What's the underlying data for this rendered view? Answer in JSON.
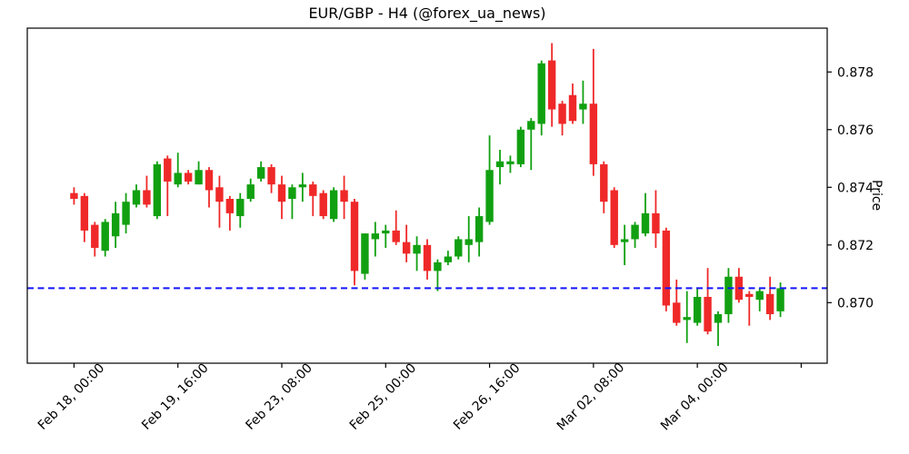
{
  "chart_data": {
    "type": "candlestick",
    "title": "EUR/GBP - H4 (@forex_ua_news)",
    "symbol": "EUR/GBP",
    "timeframe": "H4",
    "ylabel": "Price",
    "y_ticks": [
      "0.870",
      "0.872",
      "0.874",
      "0.876",
      "0.878"
    ],
    "x_ticks": [
      {
        "index": 0,
        "label": "Feb 18, 00:00"
      },
      {
        "index": 10,
        "label": "Feb 19, 16:00"
      },
      {
        "index": 20,
        "label": "Feb 23, 08:00"
      },
      {
        "index": 30,
        "label": "Feb 25, 00:00"
      },
      {
        "index": 40,
        "label": "Feb 26, 16:00"
      },
      {
        "index": 50,
        "label": "Mar 02, 08:00"
      },
      {
        "index": 60,
        "label": "Mar 04, 00:00"
      },
      {
        "index": 70,
        "label": ""
      }
    ],
    "xlim": [
      -4.5,
      72.5
    ],
    "ylim": [
      0.8679,
      0.87952
    ],
    "grid": false,
    "hline": {
      "price": 0.8705,
      "style": "dashed",
      "color": "#1515ff"
    },
    "colors": {
      "up": "#11a011",
      "down": "#ef2929",
      "hline": "#1515ff",
      "axis": "#000000",
      "text": "#000000",
      "background": "#ffffff"
    },
    "candles": [
      {
        "t": "Feb 18, 00:00",
        "o": 0.8738,
        "h": 0.874,
        "l": 0.8734,
        "c": 0.8736
      },
      {
        "t": "Feb 18, 04:00",
        "o": 0.8737,
        "h": 0.8738,
        "l": 0.8721,
        "c": 0.8725
      },
      {
        "t": "Feb 18, 08:00",
        "o": 0.8727,
        "h": 0.8728,
        "l": 0.8716,
        "c": 0.8719
      },
      {
        "t": "Feb 18, 12:00",
        "o": 0.8718,
        "h": 0.8729,
        "l": 0.8716,
        "c": 0.8728
      },
      {
        "t": "Feb 18, 16:00",
        "o": 0.8723,
        "h": 0.8735,
        "l": 0.8719,
        "c": 0.8731
      },
      {
        "t": "Feb 18, 20:00",
        "o": 0.8727,
        "h": 0.8738,
        "l": 0.8724,
        "c": 0.8735
      },
      {
        "t": "Feb 19, 00:00",
        "o": 0.8734,
        "h": 0.8741,
        "l": 0.8733,
        "c": 0.8739
      },
      {
        "t": "Feb 19, 04:00",
        "o": 0.8739,
        "h": 0.8744,
        "l": 0.8733,
        "c": 0.8734
      },
      {
        "t": "Feb 19, 08:00",
        "o": 0.873,
        "h": 0.8749,
        "l": 0.8729,
        "c": 0.8748
      },
      {
        "t": "Feb 19, 12:00",
        "o": 0.875,
        "h": 0.8751,
        "l": 0.873,
        "c": 0.8742
      },
      {
        "t": "Feb 19, 16:00",
        "o": 0.8741,
        "h": 0.8752,
        "l": 0.874,
        "c": 0.8745
      },
      {
        "t": "Feb 19, 20:00",
        "o": 0.8745,
        "h": 0.8746,
        "l": 0.8741,
        "c": 0.8742
      },
      {
        "t": "Feb 22, 00:00",
        "o": 0.8741,
        "h": 0.8749,
        "l": 0.8741,
        "c": 0.8746
      },
      {
        "t": "Feb 22, 04:00",
        "o": 0.8746,
        "h": 0.8747,
        "l": 0.8733,
        "c": 0.8739
      },
      {
        "t": "Feb 22, 08:00",
        "o": 0.874,
        "h": 0.8744,
        "l": 0.8726,
        "c": 0.8735
      },
      {
        "t": "Feb 22, 12:00",
        "o": 0.8736,
        "h": 0.8737,
        "l": 0.8725,
        "c": 0.8731
      },
      {
        "t": "Feb 22, 16:00",
        "o": 0.873,
        "h": 0.8738,
        "l": 0.8726,
        "c": 0.8736
      },
      {
        "t": "Feb 22, 20:00",
        "o": 0.8736,
        "h": 0.8743,
        "l": 0.8735,
        "c": 0.8741
      },
      {
        "t": "Feb 23, 00:00",
        "o": 0.8743,
        "h": 0.8749,
        "l": 0.8742,
        "c": 0.8747
      },
      {
        "t": "Feb 23, 04:00",
        "o": 0.8747,
        "h": 0.8748,
        "l": 0.8738,
        "c": 0.8741
      },
      {
        "t": "Feb 23, 08:00",
        "o": 0.8741,
        "h": 0.8744,
        "l": 0.8729,
        "c": 0.8735
      },
      {
        "t": "Feb 23, 12:00",
        "o": 0.8736,
        "h": 0.8741,
        "l": 0.8729,
        "c": 0.874
      },
      {
        "t": "Feb 23, 16:00",
        "o": 0.874,
        "h": 0.8745,
        "l": 0.8735,
        "c": 0.8741
      },
      {
        "t": "Feb 23, 20:00",
        "o": 0.8741,
        "h": 0.8742,
        "l": 0.873,
        "c": 0.8737
      },
      {
        "t": "Feb 24, 00:00",
        "o": 0.8738,
        "h": 0.8739,
        "l": 0.8729,
        "c": 0.873
      },
      {
        "t": "Feb 24, 04:00",
        "o": 0.8729,
        "h": 0.874,
        "l": 0.8728,
        "c": 0.8739
      },
      {
        "t": "Feb 24, 08:00",
        "o": 0.8739,
        "h": 0.8744,
        "l": 0.8729,
        "c": 0.8735
      },
      {
        "t": "Feb 24, 12:00",
        "o": 0.8735,
        "h": 0.8736,
        "l": 0.8706,
        "c": 0.8711
      },
      {
        "t": "Feb 24, 16:00",
        "o": 0.871,
        "h": 0.8724,
        "l": 0.8708,
        "c": 0.8724
      },
      {
        "t": "Feb 24, 20:00",
        "o": 0.8722,
        "h": 0.8728,
        "l": 0.8716,
        "c": 0.8724
      },
      {
        "t": "Feb 25, 00:00",
        "o": 0.8724,
        "h": 0.8727,
        "l": 0.8719,
        "c": 0.8725
      },
      {
        "t": "Feb 25, 04:00",
        "o": 0.8725,
        "h": 0.8732,
        "l": 0.872,
        "c": 0.8721
      },
      {
        "t": "Feb 25, 08:00",
        "o": 0.8721,
        "h": 0.8727,
        "l": 0.8714,
        "c": 0.8717
      },
      {
        "t": "Feb 25, 12:00",
        "o": 0.8717,
        "h": 0.8723,
        "l": 0.8711,
        "c": 0.872
      },
      {
        "t": "Feb 25, 16:00",
        "o": 0.872,
        "h": 0.8722,
        "l": 0.8708,
        "c": 0.8711
      },
      {
        "t": "Feb 25, 20:00",
        "o": 0.8711,
        "h": 0.8715,
        "l": 0.8704,
        "c": 0.8714
      },
      {
        "t": "Feb 26, 00:00",
        "o": 0.8714,
        "h": 0.8718,
        "l": 0.8713,
        "c": 0.8716
      },
      {
        "t": "Feb 26, 04:00",
        "o": 0.8716,
        "h": 0.8723,
        "l": 0.8715,
        "c": 0.8722
      },
      {
        "t": "Feb 26, 08:00",
        "o": 0.872,
        "h": 0.873,
        "l": 0.8714,
        "c": 0.8722
      },
      {
        "t": "Feb 26, 12:00",
        "o": 0.8721,
        "h": 0.8733,
        "l": 0.8716,
        "c": 0.873
      },
      {
        "t": "Feb 26, 16:00",
        "o": 0.8728,
        "h": 0.8758,
        "l": 0.8727,
        "c": 0.8746
      },
      {
        "t": "Feb 26, 20:00",
        "o": 0.8747,
        "h": 0.8753,
        "l": 0.8741,
        "c": 0.8749
      },
      {
        "t": "Mar 01, 00:00",
        "o": 0.8748,
        "h": 0.8751,
        "l": 0.8745,
        "c": 0.8749
      },
      {
        "t": "Mar 01, 04:00",
        "o": 0.8748,
        "h": 0.8761,
        "l": 0.8747,
        "c": 0.876
      },
      {
        "t": "Mar 01, 08:00",
        "o": 0.876,
        "h": 0.8764,
        "l": 0.8746,
        "c": 0.8763
      },
      {
        "t": "Mar 01, 12:00",
        "o": 0.8762,
        "h": 0.8784,
        "l": 0.8758,
        "c": 0.8783
      },
      {
        "t": "Mar 01, 16:00",
        "o": 0.8784,
        "h": 0.879,
        "l": 0.8761,
        "c": 0.8767
      },
      {
        "t": "Mar 01, 20:00",
        "o": 0.8769,
        "h": 0.877,
        "l": 0.8758,
        "c": 0.8762
      },
      {
        "t": "Mar 02, 00:00",
        "o": 0.8772,
        "h": 0.8776,
        "l": 0.8762,
        "c": 0.8763
      },
      {
        "t": "Mar 02, 04:00",
        "o": 0.8767,
        "h": 0.8777,
        "l": 0.8762,
        "c": 0.8769
      },
      {
        "t": "Mar 02, 08:00",
        "o": 0.8769,
        "h": 0.8788,
        "l": 0.8744,
        "c": 0.8748
      },
      {
        "t": "Mar 02, 12:00",
        "o": 0.8748,
        "h": 0.8749,
        "l": 0.8731,
        "c": 0.8735
      },
      {
        "t": "Mar 02, 16:00",
        "o": 0.8739,
        "h": 0.874,
        "l": 0.8719,
        "c": 0.872
      },
      {
        "t": "Mar 02, 20:00",
        "o": 0.8721,
        "h": 0.8727,
        "l": 0.8713,
        "c": 0.8722
      },
      {
        "t": "Mar 03, 00:00",
        "o": 0.8722,
        "h": 0.8728,
        "l": 0.8719,
        "c": 0.8727
      },
      {
        "t": "Mar 03, 04:00",
        "o": 0.8724,
        "h": 0.8738,
        "l": 0.8723,
        "c": 0.8731
      },
      {
        "t": "Mar 03, 08:00",
        "o": 0.8731,
        "h": 0.8739,
        "l": 0.8719,
        "c": 0.8724
      },
      {
        "t": "Mar 03, 12:00",
        "o": 0.8725,
        "h": 0.8726,
        "l": 0.8697,
        "c": 0.8699
      },
      {
        "t": "Mar 03, 16:00",
        "o": 0.87,
        "h": 0.8708,
        "l": 0.8692,
        "c": 0.8693
      },
      {
        "t": "Mar 03, 20:00",
        "o": 0.8694,
        "h": 0.8704,
        "l": 0.8686,
        "c": 0.8695
      },
      {
        "t": "Mar 04, 00:00",
        "o": 0.8693,
        "h": 0.8705,
        "l": 0.8692,
        "c": 0.8702
      },
      {
        "t": "Mar 04, 04:00",
        "o": 0.8702,
        "h": 0.8712,
        "l": 0.8689,
        "c": 0.869
      },
      {
        "t": "Mar 04, 08:00",
        "o": 0.8693,
        "h": 0.8697,
        "l": 0.8685,
        "c": 0.8696
      },
      {
        "t": "Mar 04, 12:00",
        "o": 0.8696,
        "h": 0.8712,
        "l": 0.8693,
        "c": 0.8709
      },
      {
        "t": "Mar 04, 16:00",
        "o": 0.8709,
        "h": 0.8712,
        "l": 0.87,
        "c": 0.8701
      },
      {
        "t": "Mar 04, 20:00",
        "o": 0.8703,
        "h": 0.8704,
        "l": 0.8692,
        "c": 0.8702
      },
      {
        "t": "Mar 05, 00:00",
        "o": 0.8701,
        "h": 0.8705,
        "l": 0.8697,
        "c": 0.8704
      },
      {
        "t": "Mar 05, 04:00",
        "o": 0.8703,
        "h": 0.8709,
        "l": 0.8694,
        "c": 0.8696
      },
      {
        "t": "Mar 05, 08:00",
        "o": 0.8697,
        "h": 0.8707,
        "l": 0.8695,
        "c": 0.8705
      }
    ]
  }
}
